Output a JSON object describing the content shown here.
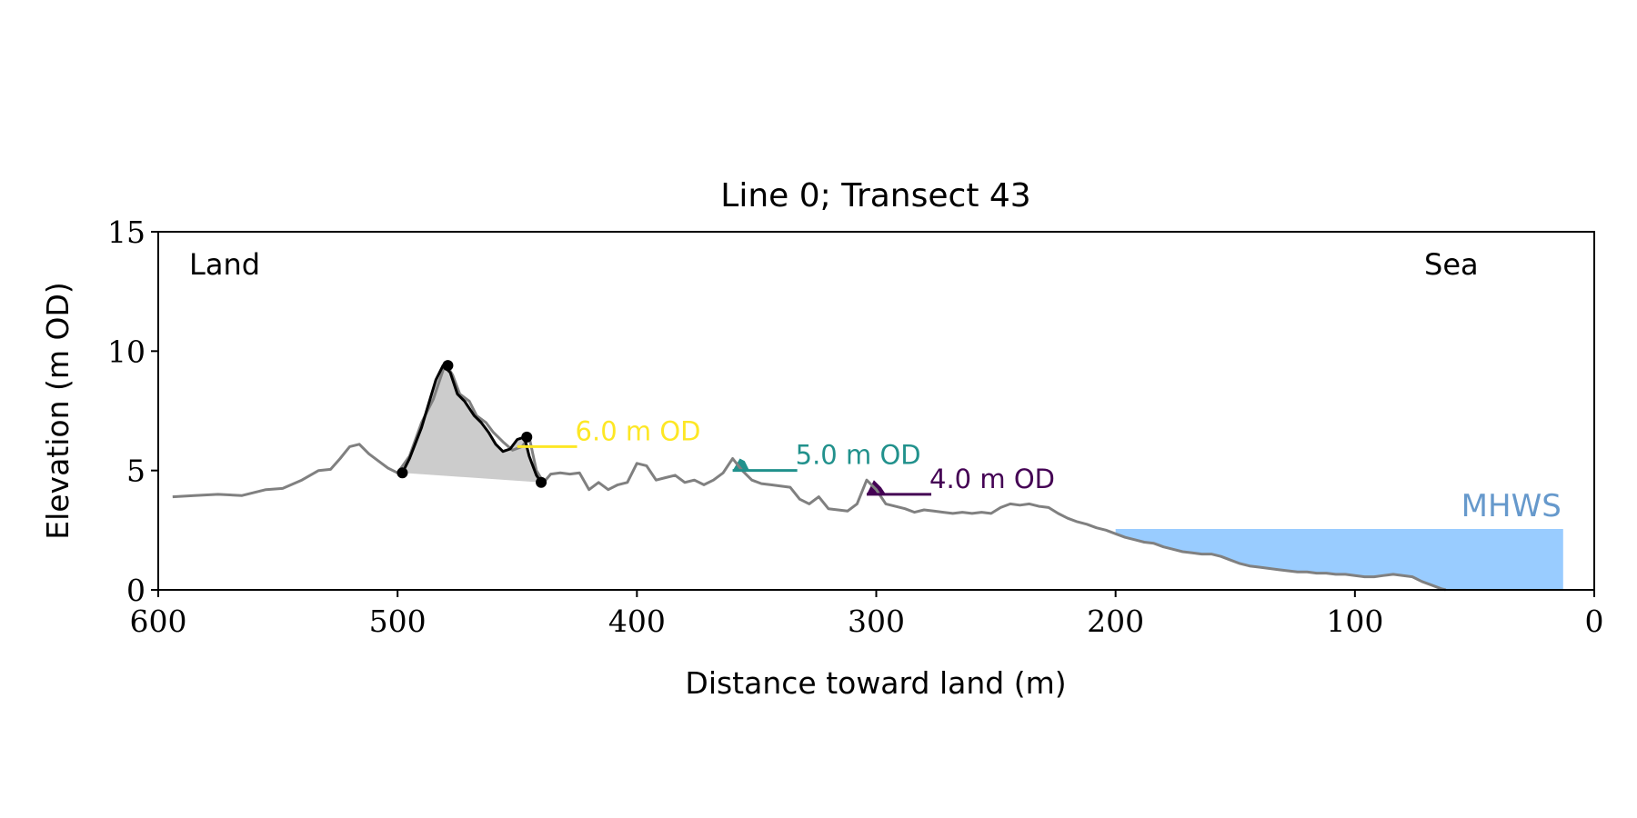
{
  "chart_data": {
    "type": "line",
    "title": "Line 0; Transect 43",
    "xlabel": "Distance toward land (m)",
    "ylabel": "Elevation (m OD)",
    "xlim": [
      600,
      0
    ],
    "ylim": [
      0,
      15
    ],
    "x_ticks": [
      600,
      500,
      400,
      300,
      200,
      100,
      0
    ],
    "y_ticks": [
      0,
      5,
      10,
      15
    ],
    "grid": false,
    "annotations": {
      "land": "Land",
      "sea": "Sea",
      "mhws": "MHWS"
    },
    "colors": {
      "profile": "#808080",
      "dune": "#000000",
      "dune_fill": "#cccccc",
      "mhws_fill": "#99ccff",
      "mhws_label": "#6699cc",
      "level_6": "#fde725",
      "level_5": "#21918c",
      "level_4": "#440154"
    },
    "profile": {
      "x": [
        594,
        585,
        575,
        565,
        555,
        548,
        540,
        533,
        528,
        524,
        520,
        516,
        512,
        508,
        504,
        500,
        495,
        490,
        485,
        480,
        477,
        474,
        470,
        467,
        463,
        460,
        456,
        452,
        448,
        445,
        442,
        439,
        436,
        432,
        428,
        424,
        420,
        416,
        412,
        408,
        404,
        400,
        396,
        392,
        388,
        384,
        380,
        376,
        372,
        368,
        364,
        360,
        356,
        352,
        348,
        344,
        340,
        336,
        332,
        328,
        324,
        320,
        316,
        312,
        308,
        304,
        300,
        296,
        292,
        288,
        284,
        280,
        276,
        272,
        268,
        264,
        260,
        256,
        252,
        248,
        244,
        240,
        236,
        232,
        228,
        224,
        220,
        216,
        212,
        208,
        204,
        200,
        196,
        192,
        188,
        184,
        180,
        176,
        172,
        168,
        164,
        160,
        156,
        152,
        148,
        144,
        140,
        136,
        132,
        128,
        124,
        120,
        116,
        112,
        108,
        104,
        100,
        96,
        92,
        88,
        84,
        80,
        76,
        72,
        68,
        64,
        62
      ],
      "y": [
        3.9,
        3.95,
        4.0,
        3.95,
        4.2,
        4.25,
        4.6,
        5.0,
        5.05,
        5.5,
        6.0,
        6.1,
        5.7,
        5.4,
        5.1,
        4.9,
        5.6,
        7.0,
        8.0,
        9.5,
        9.0,
        8.2,
        7.9,
        7.3,
        7.0,
        6.6,
        6.2,
        5.85,
        6.0,
        6.4,
        5.0,
        4.5,
        4.85,
        4.9,
        4.85,
        4.9,
        4.2,
        4.5,
        4.2,
        4.4,
        4.5,
        5.3,
        5.2,
        4.6,
        4.7,
        4.8,
        4.5,
        4.6,
        4.4,
        4.6,
        4.9,
        5.5,
        5.0,
        4.6,
        4.45,
        4.4,
        4.35,
        4.3,
        3.8,
        3.6,
        3.9,
        3.4,
        3.35,
        3.3,
        3.6,
        4.6,
        4.2,
        3.6,
        3.5,
        3.4,
        3.25,
        3.35,
        3.3,
        3.25,
        3.2,
        3.25,
        3.2,
        3.25,
        3.2,
        3.45,
        3.6,
        3.55,
        3.6,
        3.5,
        3.45,
        3.2,
        3.0,
        2.85,
        2.75,
        2.6,
        2.5,
        2.35,
        2.2,
        2.1,
        2.0,
        1.95,
        1.8,
        1.7,
        1.6,
        1.55,
        1.5,
        1.5,
        1.4,
        1.25,
        1.1,
        1.0,
        0.95,
        0.9,
        0.85,
        0.8,
        0.75,
        0.75,
        0.7,
        0.7,
        0.65,
        0.65,
        0.6,
        0.55,
        0.55,
        0.6,
        0.65,
        0.6,
        0.55,
        0.35,
        0.2,
        0.05,
        0.0
      ]
    },
    "dune": {
      "x": [
        498,
        495,
        490,
        487,
        484,
        481,
        478,
        475,
        472,
        468,
        465,
        462,
        459,
        456,
        453,
        450,
        447,
        445,
        442,
        440
      ],
      "y": [
        4.9,
        5.5,
        6.8,
        7.8,
        8.8,
        9.4,
        9.1,
        8.2,
        7.9,
        7.3,
        7.0,
        6.6,
        6.1,
        5.8,
        5.9,
        6.3,
        6.4,
        5.6,
        4.8,
        4.5
      ],
      "markers": [
        {
          "x": 498,
          "y": 4.9
        },
        {
          "x": 479,
          "y": 9.4
        },
        {
          "x": 446,
          "y": 6.4
        },
        {
          "x": 440,
          "y": 4.5
        }
      ]
    },
    "levels": [
      {
        "label": "6.0 m OD",
        "elevation": 6.0,
        "x_start": 450,
        "x_end": 425,
        "color_key": "level_6",
        "fill_x": [],
        "fill_y": []
      },
      {
        "label": "5.0 m OD",
        "elevation": 5.0,
        "x_start": 360,
        "x_end": 333,
        "color_key": "level_5",
        "fill_x": [
          360,
          357,
          355,
          353
        ],
        "fill_y": [
          5.0,
          5.5,
          5.4,
          5.0
        ]
      },
      {
        "label": "4.0 m OD",
        "elevation": 4.0,
        "x_start": 304,
        "x_end": 277,
        "color_key": "level_4",
        "fill_x": [
          304,
          301,
          298,
          296
        ],
        "fill_y": [
          4.0,
          4.6,
          4.3,
          4.0
        ]
      }
    ],
    "mhws": {
      "elevation": 2.55,
      "x_start": 200,
      "x_end": 13
    }
  }
}
